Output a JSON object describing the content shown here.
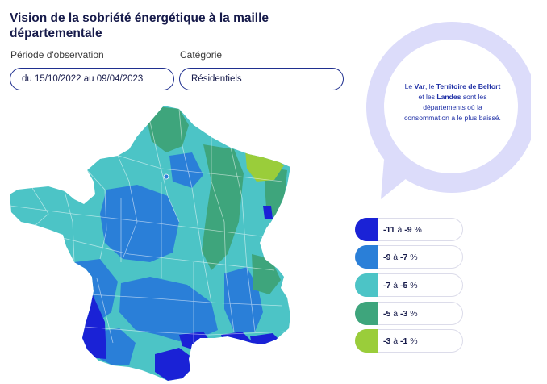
{
  "title": "Vision de la sobriété énergétique à la maille départementale",
  "filters": {
    "period_label": "Période d'observation",
    "period_value": "du 15/10/2022 au 09/04/2023",
    "category_label": "Catégorie",
    "category_value": "Résidentiels"
  },
  "callout": {
    "p1": "Le ",
    "d1": "Var",
    "p2": ", le ",
    "d2": "Territoire de Belfort",
    "p3": " et les ",
    "d3": "Landes",
    "p4": " sont les départements où la consommation a le plus baissé.",
    "bg_color": "#dcdcfa"
  },
  "legend": [
    {
      "from": "-11",
      "sep": " à ",
      "to": "-9",
      "unit": " %",
      "color": "#1a22d6"
    },
    {
      "from": "-9",
      "sep": " à ",
      "to": "-7",
      "unit": " %",
      "color": "#2a7fd8"
    },
    {
      "from": "-7",
      "sep": " à ",
      "to": "-5",
      "unit": " %",
      "color": "#4cc4c6"
    },
    {
      "from": "-5",
      "sep": " à ",
      "to": "-3",
      "unit": " %",
      "color": "#3ea57c"
    },
    {
      "from": "-3",
      "sep": " à ",
      "to": "-1",
      "unit": " %",
      "color": "#9acd3a"
    }
  ]
}
